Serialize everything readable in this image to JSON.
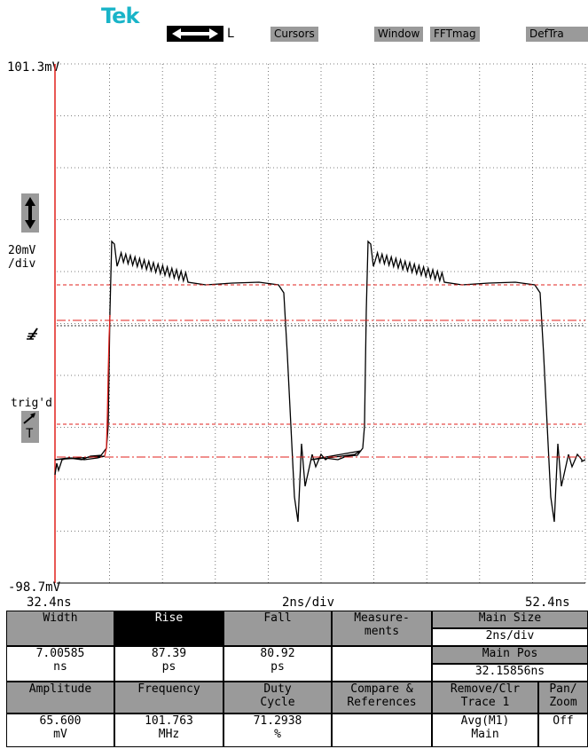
{
  "header": {
    "logo": "Tek",
    "arrow_suffix": "L",
    "buttons": [
      "Cursors",
      "Window",
      "FFTmag",
      "DefTra"
    ]
  },
  "display": {
    "top_voltage": "101.3mV",
    "bottom_voltage": "-98.7mV",
    "vert_scale_line1": "20mV",
    "vert_scale_line2": "/div",
    "trig_label": "trig'd",
    "trig_badge": "T",
    "time_start": "32.4ns",
    "time_scale": "2ns/div",
    "time_end": "52.4ns"
  },
  "measurements": {
    "width": {
      "label": "Width",
      "value": "7.00585",
      "unit": "ns"
    },
    "rise": {
      "label": "Rise",
      "value": "87.39",
      "unit": "ps"
    },
    "fall": {
      "label": "Fall",
      "value": "80.92",
      "unit": "ps"
    },
    "amplitude": {
      "label": "Amplitude",
      "value": "65.600",
      "unit": "mV"
    },
    "frequency": {
      "label": "Frequency",
      "value": "101.763",
      "unit": "MHz"
    },
    "duty": {
      "label1": "Duty",
      "label2": "Cycle",
      "value": "71.2938",
      "unit": "%"
    }
  },
  "menus": {
    "measurements_1": "Measure-",
    "measurements_2": "ments",
    "main_size_label": "Main Size",
    "main_size_value": "2ns/div",
    "main_pos_label": "Main Pos",
    "main_pos_value": "32.15856ns",
    "compare_1": "Compare &",
    "compare_2": "References",
    "remove_1": "Remove/Clr",
    "remove_2": "Trace 1",
    "remove_3": "Avg(M1)",
    "remove_4": "Main",
    "pan_1": "Pan/",
    "pan_2": "Zoom",
    "pan_3": "Off"
  },
  "colors": {
    "logo": "#19b4c8",
    "cursor": "#e0201c",
    "trace": "#000000",
    "button_gray": "#9a9a9a"
  }
}
